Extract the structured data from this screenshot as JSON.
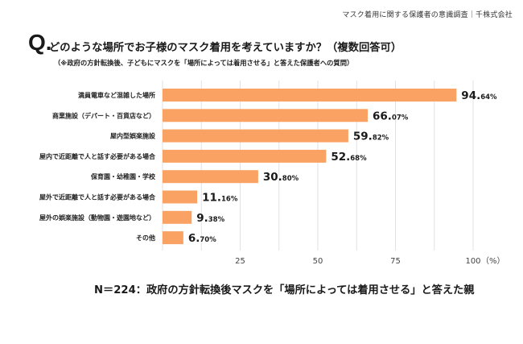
{
  "header": {
    "survey_title": "マスク着用に関する保護者の意識調査｜千株式会社"
  },
  "question": {
    "marker": "Q.",
    "title": "どのような場所でお子様のマスク着用を考えていますか？（複数回答可）",
    "subtitle": "（※政府の方針転換後、子どもにマスクを「場所によっては着用させる」と答えた保護者への質問）"
  },
  "note": "N＝224：政府の方針転換後マスクを「場所によっては着用させる」と答えた親",
  "colors": {
    "bar": "#F9A264",
    "grid": "#E2E2E2",
    "text": "#1A1A1A"
  },
  "chart_data": {
    "type": "bar",
    "orientation": "horizontal",
    "title": "どのような場所でお子様のマスク着用を考えていますか？（複数回答可）",
    "xlabel": "",
    "ylabel": "",
    "x_unit": "（%）",
    "xlim": [
      0,
      100
    ],
    "xticks": [
      25,
      50,
      75,
      100
    ],
    "grid_step": 12.5,
    "grid": true,
    "legend": "none",
    "categories": [
      "満員電車など混雑した場所",
      "商業施設（デパート・百貨店など）",
      "屋内型娯楽施設",
      "屋内で近距離で人と話す必要がある場合",
      "保育園・幼稚園・学校",
      "屋外で近距離で人と話す必要がある場合",
      "屋外の娯楽施設（動物園・遊園地など）",
      "その他"
    ],
    "values": [
      94.64,
      66.07,
      59.82,
      52.68,
      30.8,
      11.16,
      9.38,
      6.7
    ],
    "value_labels": [
      "94.64%",
      "66.07%",
      "59.82%",
      "52.68%",
      "30.80%",
      "11.16%",
      "9.38%",
      "6.70%"
    ]
  }
}
